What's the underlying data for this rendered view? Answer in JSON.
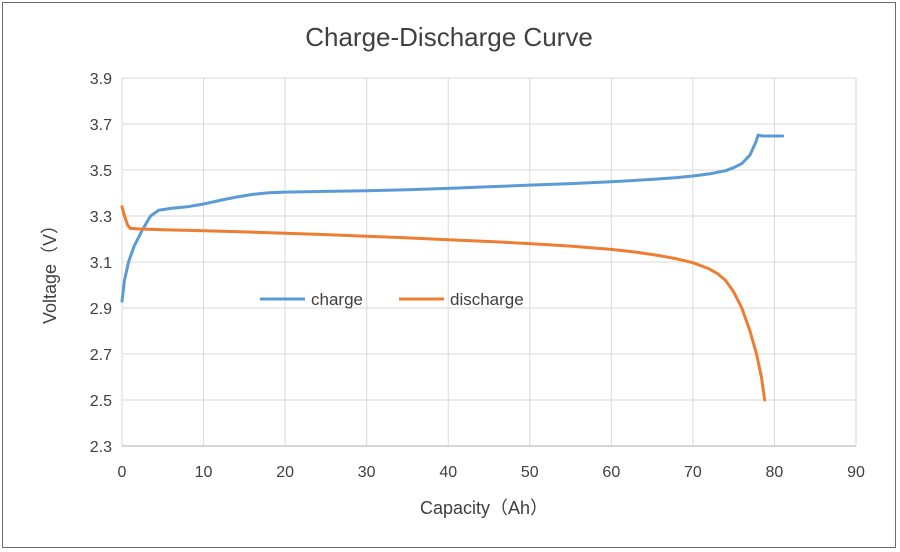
{
  "chart_data": {
    "type": "line",
    "title": "Charge-Discharge Curve",
    "xlabel": "Capacity（Ah）",
    "ylabel": "Voltage（V）",
    "xlim": [
      0,
      90
    ],
    "ylim": [
      2.3,
      3.9
    ],
    "xticks": [
      0,
      10,
      20,
      30,
      40,
      50,
      60,
      70,
      80,
      90
    ],
    "yticks": [
      2.3,
      2.5,
      2.7,
      2.9,
      3.1,
      3.3,
      3.5,
      3.7,
      3.9
    ],
    "grid": true,
    "legend_position": "inside-left",
    "series": [
      {
        "name": "charge",
        "color": "#5b9bd5",
        "points": [
          [
            0,
            2.93
          ],
          [
            0.3,
            3.02
          ],
          [
            0.8,
            3.1
          ],
          [
            1.5,
            3.17
          ],
          [
            2.5,
            3.24
          ],
          [
            3.5,
            3.3
          ],
          [
            4.5,
            3.325
          ],
          [
            6,
            3.333
          ],
          [
            8,
            3.34
          ],
          [
            10,
            3.352
          ],
          [
            12,
            3.368
          ],
          [
            14,
            3.382
          ],
          [
            16,
            3.394
          ],
          [
            18,
            3.401
          ],
          [
            20,
            3.404
          ],
          [
            25,
            3.407
          ],
          [
            30,
            3.41
          ],
          [
            35,
            3.414
          ],
          [
            40,
            3.42
          ],
          [
            45,
            3.427
          ],
          [
            50,
            3.434
          ],
          [
            55,
            3.441
          ],
          [
            60,
            3.449
          ],
          [
            65,
            3.459
          ],
          [
            68,
            3.467
          ],
          [
            70,
            3.474
          ],
          [
            72,
            3.483
          ],
          [
            74,
            3.497
          ],
          [
            75,
            3.51
          ],
          [
            76,
            3.528
          ],
          [
            77,
            3.565
          ],
          [
            77.7,
            3.62
          ],
          [
            78,
            3.652
          ],
          [
            78.5,
            3.648
          ],
          [
            80,
            3.648
          ],
          [
            81,
            3.648
          ]
        ]
      },
      {
        "name": "discharge",
        "color": "#ed7d31",
        "points": [
          [
            0,
            3.34
          ],
          [
            0.3,
            3.3
          ],
          [
            0.7,
            3.26
          ],
          [
            1,
            3.246
          ],
          [
            2,
            3.244
          ],
          [
            5,
            3.24
          ],
          [
            10,
            3.236
          ],
          [
            15,
            3.231
          ],
          [
            20,
            3.225
          ],
          [
            25,
            3.219
          ],
          [
            30,
            3.212
          ],
          [
            35,
            3.205
          ],
          [
            40,
            3.197
          ],
          [
            45,
            3.189
          ],
          [
            50,
            3.18
          ],
          [
            55,
            3.169
          ],
          [
            60,
            3.155
          ],
          [
            63,
            3.143
          ],
          [
            66,
            3.127
          ],
          [
            68,
            3.114
          ],
          [
            70,
            3.097
          ],
          [
            72,
            3.07
          ],
          [
            73,
            3.05
          ],
          [
            74,
            3.02
          ],
          [
            75,
            2.97
          ],
          [
            76,
            2.9
          ],
          [
            77,
            2.8
          ],
          [
            77.8,
            2.7
          ],
          [
            78.4,
            2.6
          ],
          [
            78.8,
            2.5
          ]
        ]
      }
    ]
  }
}
